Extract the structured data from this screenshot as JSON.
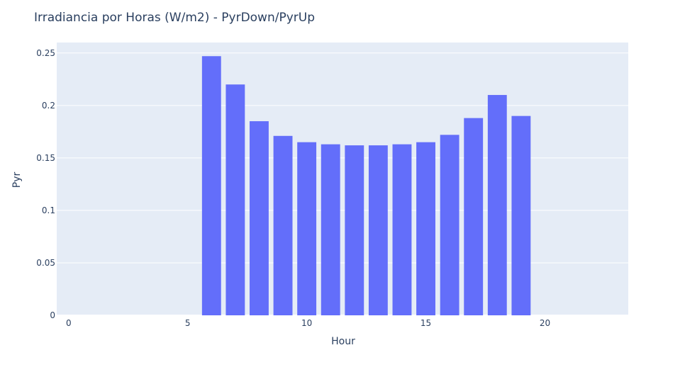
{
  "chart_data": {
    "type": "bar",
    "title": "Irradiancia por Horas (W/m2) - PyrDown/PyrUp",
    "xlabel": "Hour",
    "ylabel": "Pyr",
    "xlim": [
      -0.5,
      23.5
    ],
    "ylim": [
      0,
      0.26
    ],
    "x_ticks": [
      0,
      5,
      10,
      15,
      20
    ],
    "x_tick_labels": [
      "0",
      "5",
      "10",
      "15",
      "20"
    ],
    "y_ticks": [
      0,
      0.05,
      0.1,
      0.15,
      0.2,
      0.25
    ],
    "y_tick_labels": [
      "0",
      "0.05",
      "0.1",
      "0.15",
      "0.2",
      "0.25"
    ],
    "grid": true,
    "x": [
      6,
      7,
      8,
      9,
      10,
      11,
      12,
      13,
      14,
      15,
      16,
      17,
      18,
      19
    ],
    "values": [
      0.247,
      0.22,
      0.185,
      0.171,
      0.165,
      0.163,
      0.162,
      0.162,
      0.163,
      0.165,
      0.172,
      0.188,
      0.21,
      0.19
    ],
    "colors": {
      "bar": "#636efa",
      "plot_background": "#e5ecf6",
      "gridline": "#ffffff",
      "text": "#2a3f5f"
    }
  }
}
